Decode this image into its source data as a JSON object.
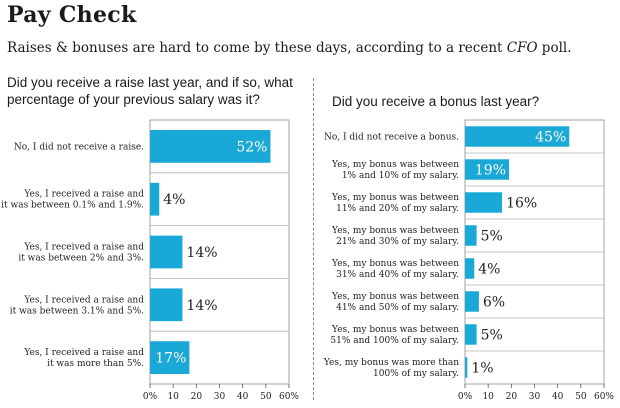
{
  "header": {
    "title": "Pay Check",
    "subtitle_text": "Raises & bonuses are hard to come by these days, according to a recent ",
    "subtitle_em": "CFO",
    "subtitle_end": " poll."
  },
  "chart_data": [
    {
      "type": "bar",
      "orientation": "horizontal",
      "title": "Did you receive a raise last year, and if so, what percentage of your previous salary was it?",
      "categories": [
        [
          "No, I did not receive a raise."
        ],
        [
          "Yes, I received a raise and",
          "it was between 0.1% and 1.9%."
        ],
        [
          "Yes, I received a raise and",
          "it was between 2% and 3%."
        ],
        [
          "Yes, I received a raise and",
          "it was between 3.1% and 5%."
        ],
        [
          "Yes, I received a raise and",
          "it was more than 5%."
        ]
      ],
      "values": [
        52,
        4,
        14,
        14,
        17
      ],
      "value_labels": [
        "52%",
        "4%",
        "14%",
        "14%",
        "17%"
      ],
      "xlim": [
        0,
        60
      ],
      "xticks": [
        "0%",
        "10",
        "20",
        "30",
        "40",
        "50",
        "60%"
      ],
      "bar_color": "#1aa9d6",
      "grid": true
    },
    {
      "type": "bar",
      "orientation": "horizontal",
      "title": "Did you receive a bonus last year?",
      "categories": [
        [
          "No, I did not receive a bonus."
        ],
        [
          "Yes, my bonus was between",
          "1% and 10% of my salary."
        ],
        [
          "Yes, my bonus was between",
          "11% and 20% of my salary."
        ],
        [
          "Yes, my bonus was between",
          "21% and 30% of my salary."
        ],
        [
          "Yes, my bonus was between",
          "31% and 40% of my salary."
        ],
        [
          "Yes, my bonus was between",
          "41% and 50% of my salary."
        ],
        [
          "Yes, my bonus was between",
          "51% and 100% of my salary."
        ],
        [
          "Yes, my bonus was more than",
          "100% of my salary."
        ]
      ],
      "values": [
        45,
        19,
        16,
        5,
        4,
        6,
        5,
        1
      ],
      "value_labels": [
        "45%",
        "19%",
        "16%",
        "5%",
        "4%",
        "6%",
        "5%",
        "1%"
      ],
      "xlim": [
        0,
        60
      ],
      "xticks": [
        "0%",
        "10",
        "20",
        "30",
        "40",
        "50",
        "60%"
      ],
      "bar_color": "#1aa9d6",
      "grid": true
    }
  ]
}
